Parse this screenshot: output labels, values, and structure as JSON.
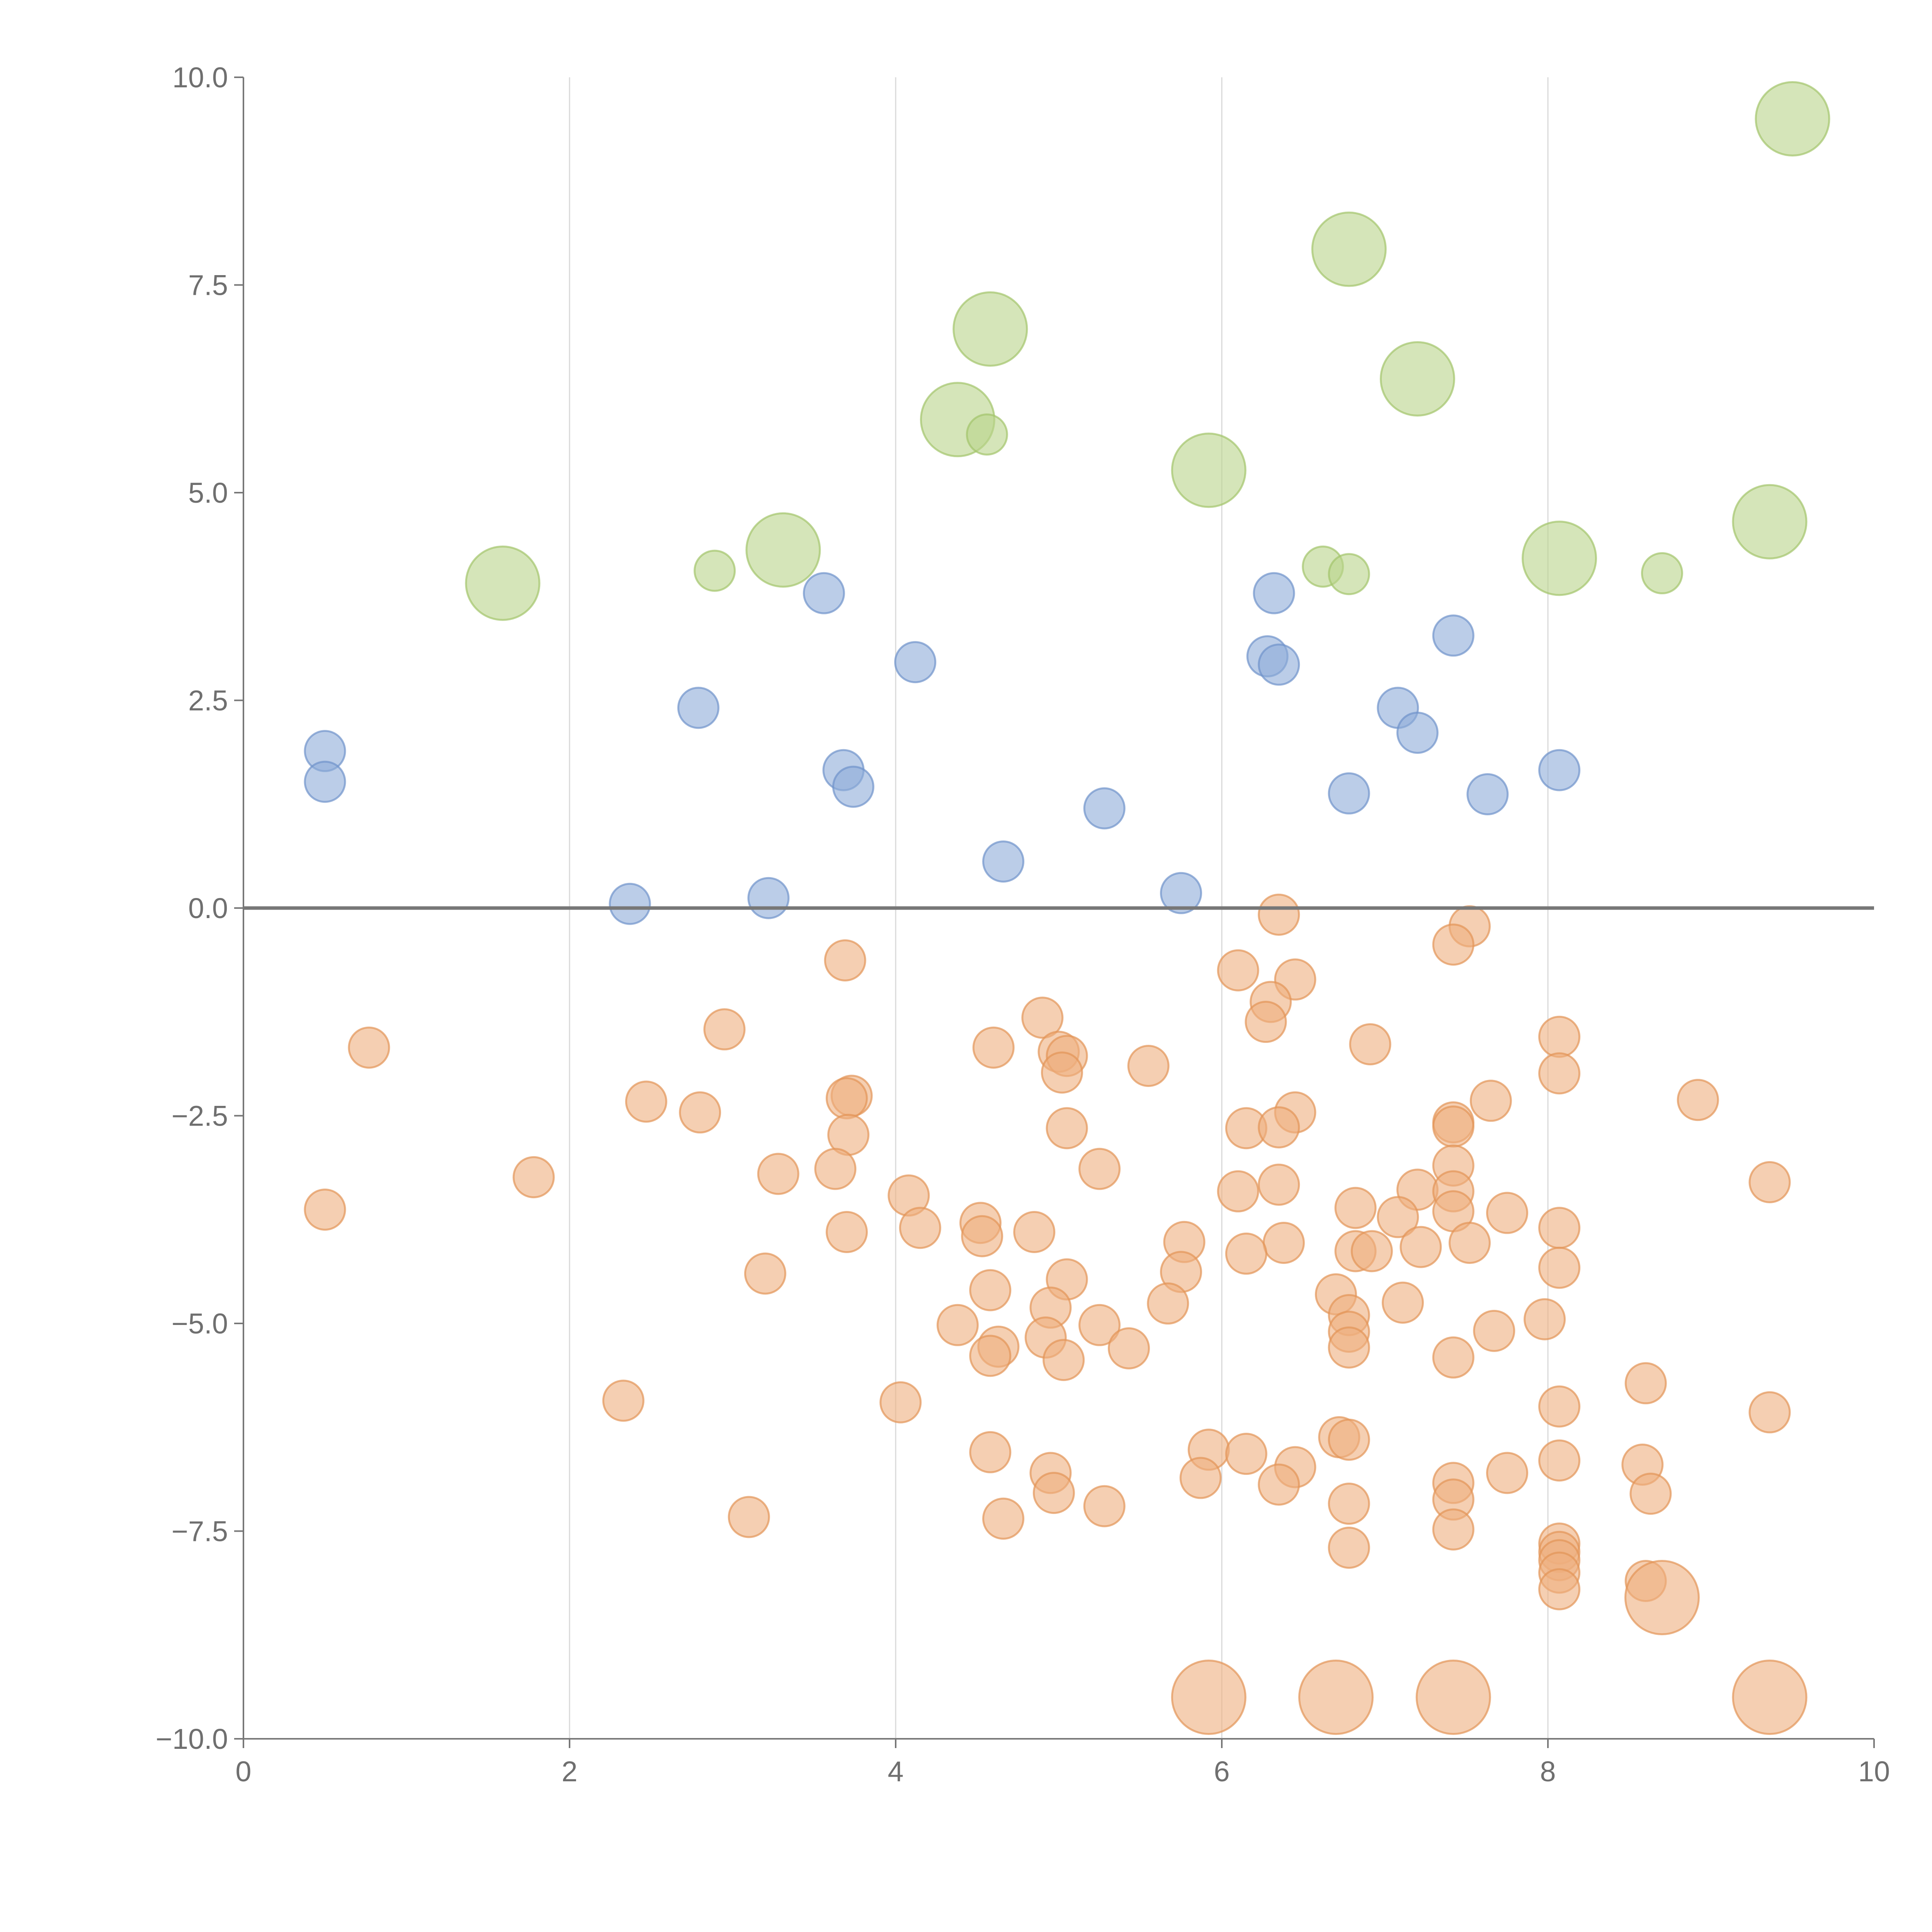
{
  "chart_data": {
    "type": "scatter",
    "title": "",
    "xlabel": "",
    "ylabel": "",
    "xlim": [
      0,
      10
    ],
    "ylim": [
      -10,
      10
    ],
    "grid": {
      "x": true,
      "y": false
    },
    "x_ticks": [
      0,
      2,
      4,
      6,
      8,
      10
    ],
    "x_tick_labels": [
      "0",
      "2",
      "4",
      "6",
      "8",
      "10"
    ],
    "y_ticks": [
      10,
      7.5,
      5,
      2.5,
      0,
      -2.5,
      -5,
      -7.5,
      -10
    ],
    "y_tick_labels": [
      "10.0",
      "7.5",
      "5.0",
      "2.5",
      "0.0",
      "−2.5",
      "−5.0",
      "−7.5",
      "−10.0"
    ],
    "reference_line_y": 0,
    "colors": {
      "green_fill": "#b9d48b",
      "green_stroke": "#a3c46b",
      "blue_fill": "#8eabd8",
      "blue_stroke": "#6f93cb",
      "orange_fill": "#eeaf7e",
      "orange_stroke": "#e29457",
      "axis": "#777777",
      "grid": "#d9d9d9"
    },
    "series": [
      {
        "name": "green",
        "color": "green",
        "points": [
          {
            "x": 9.5,
            "y": 9.5,
            "s": 2
          },
          {
            "x": 6.78,
            "y": 7.93,
            "s": 2
          },
          {
            "x": 4.58,
            "y": 6.97,
            "s": 2
          },
          {
            "x": 7.2,
            "y": 6.37,
            "s": 2
          },
          {
            "x": 4.38,
            "y": 5.88,
            "s": 2
          },
          {
            "x": 4.56,
            "y": 5.7,
            "s": 1
          },
          {
            "x": 5.92,
            "y": 5.27,
            "s": 2
          },
          {
            "x": 9.36,
            "y": 4.65,
            "s": 2
          },
          {
            "x": 3.31,
            "y": 4.31,
            "s": 2
          },
          {
            "x": 8.07,
            "y": 4.21,
            "s": 2
          },
          {
            "x": 6.62,
            "y": 4.11,
            "s": 1
          },
          {
            "x": 2.89,
            "y": 4.06,
            "s": 1
          },
          {
            "x": 6.78,
            "y": 4.02,
            "s": 1
          },
          {
            "x": 8.7,
            "y": 4.03,
            "s": 1
          },
          {
            "x": 1.59,
            "y": 3.91,
            "s": 2
          }
        ]
      },
      {
        "name": "blue",
        "color": "blue",
        "points": [
          {
            "x": 6.32,
            "y": 3.79,
            "s": 1
          },
          {
            "x": 3.56,
            "y": 3.79,
            "s": 1
          },
          {
            "x": 7.42,
            "y": 3.28,
            "s": 1
          },
          {
            "x": 6.28,
            "y": 3.03,
            "s": 1
          },
          {
            "x": 6.35,
            "y": 2.93,
            "s": 1
          },
          {
            "x": 4.12,
            "y": 2.96,
            "s": 1
          },
          {
            "x": 2.79,
            "y": 2.41,
            "s": 1
          },
          {
            "x": 7.08,
            "y": 2.41,
            "s": 1
          },
          {
            "x": 7.2,
            "y": 2.11,
            "s": 1
          },
          {
            "x": 0.5,
            "y": 1.89,
            "s": 1
          },
          {
            "x": 8.07,
            "y": 1.66,
            "s": 1
          },
          {
            "x": 3.68,
            "y": 1.66,
            "s": 1
          },
          {
            "x": 0.5,
            "y": 1.52,
            "s": 1
          },
          {
            "x": 3.74,
            "y": 1.46,
            "s": 1
          },
          {
            "x": 6.78,
            "y": 1.38,
            "s": 1
          },
          {
            "x": 7.63,
            "y": 1.37,
            "s": 1
          },
          {
            "x": 5.28,
            "y": 1.2,
            "s": 1
          },
          {
            "x": 4.66,
            "y": 0.56,
            "s": 1
          },
          {
            "x": 5.75,
            "y": 0.18,
            "s": 1
          },
          {
            "x": 3.22,
            "y": 0.12,
            "s": 1
          },
          {
            "x": 2.37,
            "y": 0.05,
            "s": 1
          }
        ]
      },
      {
        "name": "orange",
        "color": "orange",
        "points": [
          {
            "x": 6.35,
            "y": -0.08,
            "s": 1
          },
          {
            "x": 7.52,
            "y": -0.22,
            "s": 1
          },
          {
            "x": 7.42,
            "y": -0.44,
            "s": 1
          },
          {
            "x": 3.69,
            "y": -0.63,
            "s": 1
          },
          {
            "x": 6.1,
            "y": -0.75,
            "s": 1
          },
          {
            "x": 6.45,
            "y": -0.86,
            "s": 1
          },
          {
            "x": 6.3,
            "y": -1.13,
            "s": 1
          },
          {
            "x": 4.9,
            "y": -1.32,
            "s": 1
          },
          {
            "x": 6.27,
            "y": -1.37,
            "s": 1
          },
          {
            "x": 2.95,
            "y": -1.46,
            "s": 1
          },
          {
            "x": 8.07,
            "y": -1.55,
            "s": 1
          },
          {
            "x": 0.77,
            "y": -1.68,
            "s": 1
          },
          {
            "x": 4.6,
            "y": -1.68,
            "s": 1
          },
          {
            "x": 6.91,
            "y": -1.64,
            "s": 1
          },
          {
            "x": 5.0,
            "y": -1.73,
            "s": 1
          },
          {
            "x": 5.05,
            "y": -1.78,
            "s": 1
          },
          {
            "x": 5.55,
            "y": -1.9,
            "s": 1
          },
          {
            "x": 5.02,
            "y": -1.98,
            "s": 1
          },
          {
            "x": 8.07,
            "y": -1.99,
            "s": 1
          },
          {
            "x": 3.73,
            "y": -2.26,
            "s": 1
          },
          {
            "x": 3.7,
            "y": -2.29,
            "s": 1
          },
          {
            "x": 2.47,
            "y": -2.33,
            "s": 1
          },
          {
            "x": 7.65,
            "y": -2.32,
            "s": 1
          },
          {
            "x": 8.92,
            "y": -2.31,
            "s": 1
          },
          {
            "x": 2.8,
            "y": -2.46,
            "s": 1
          },
          {
            "x": 6.45,
            "y": -2.46,
            "s": 1
          },
          {
            "x": 7.42,
            "y": -2.58,
            "s": 1
          },
          {
            "x": 7.42,
            "y": -2.63,
            "s": 1
          },
          {
            "x": 6.15,
            "y": -2.65,
            "s": 1
          },
          {
            "x": 6.35,
            "y": -2.64,
            "s": 1
          },
          {
            "x": 5.05,
            "y": -2.65,
            "s": 1
          },
          {
            "x": 3.71,
            "y": -2.73,
            "s": 1
          },
          {
            "x": 3.63,
            "y": -3.14,
            "s": 1
          },
          {
            "x": 5.25,
            "y": -3.14,
            "s": 1
          },
          {
            "x": 7.42,
            "y": -3.1,
            "s": 1
          },
          {
            "x": 1.78,
            "y": -3.24,
            "s": 1
          },
          {
            "x": 3.28,
            "y": -3.2,
            "s": 1
          },
          {
            "x": 6.35,
            "y": -3.33,
            "s": 1
          },
          {
            "x": 9.36,
            "y": -3.3,
            "s": 1
          },
          {
            "x": 7.2,
            "y": -3.39,
            "s": 1
          },
          {
            "x": 7.42,
            "y": -3.41,
            "s": 1
          },
          {
            "x": 6.1,
            "y": -3.41,
            "s": 1
          },
          {
            "x": 4.08,
            "y": -3.46,
            "s": 1
          },
          {
            "x": 0.5,
            "y": -3.63,
            "s": 1
          },
          {
            "x": 6.82,
            "y": -3.61,
            "s": 1
          },
          {
            "x": 7.42,
            "y": -3.65,
            "s": 1
          },
          {
            "x": 7.75,
            "y": -3.67,
            "s": 1
          },
          {
            "x": 7.08,
            "y": -3.72,
            "s": 1
          },
          {
            "x": 4.52,
            "y": -3.79,
            "s": 1
          },
          {
            "x": 4.15,
            "y": -3.85,
            "s": 1
          },
          {
            "x": 3.7,
            "y": -3.9,
            "s": 1
          },
          {
            "x": 4.85,
            "y": -3.9,
            "s": 1
          },
          {
            "x": 8.07,
            "y": -3.85,
            "s": 1
          },
          {
            "x": 4.53,
            "y": -3.95,
            "s": 1
          },
          {
            "x": 5.77,
            "y": -4.02,
            "s": 1
          },
          {
            "x": 6.38,
            "y": -4.03,
            "s": 1
          },
          {
            "x": 7.52,
            "y": -4.03,
            "s": 1
          },
          {
            "x": 7.22,
            "y": -4.08,
            "s": 1
          },
          {
            "x": 6.82,
            "y": -4.13,
            "s": 1
          },
          {
            "x": 6.92,
            "y": -4.13,
            "s": 1
          },
          {
            "x": 6.15,
            "y": -4.16,
            "s": 1
          },
          {
            "x": 8.07,
            "y": -4.33,
            "s": 1
          },
          {
            "x": 3.2,
            "y": -4.4,
            "s": 1
          },
          {
            "x": 5.75,
            "y": -4.38,
            "s": 1
          },
          {
            "x": 5.05,
            "y": -4.47,
            "s": 1
          },
          {
            "x": 4.58,
            "y": -4.6,
            "s": 1
          },
          {
            "x": 6.7,
            "y": -4.65,
            "s": 1
          },
          {
            "x": 5.67,
            "y": -4.76,
            "s": 1
          },
          {
            "x": 7.11,
            "y": -4.75,
            "s": 1
          },
          {
            "x": 4.95,
            "y": -4.81,
            "s": 1
          },
          {
            "x": 6.78,
            "y": -4.9,
            "s": 1
          },
          {
            "x": 7.98,
            "y": -4.95,
            "s": 1
          },
          {
            "x": 4.38,
            "y": -5.02,
            "s": 1
          },
          {
            "x": 5.25,
            "y": -5.02,
            "s": 1
          },
          {
            "x": 6.78,
            "y": -5.1,
            "s": 1
          },
          {
            "x": 7.67,
            "y": -5.09,
            "s": 1
          },
          {
            "x": 4.92,
            "y": -5.17,
            "s": 1
          },
          {
            "x": 4.63,
            "y": -5.28,
            "s": 1
          },
          {
            "x": 6.78,
            "y": -5.29,
            "s": 1
          },
          {
            "x": 5.43,
            "y": -5.3,
            "s": 1
          },
          {
            "x": 4.58,
            "y": -5.39,
            "s": 1
          },
          {
            "x": 5.03,
            "y": -5.44,
            "s": 1
          },
          {
            "x": 7.42,
            "y": -5.41,
            "s": 1
          },
          {
            "x": 8.6,
            "y": -5.72,
            "s": 1
          },
          {
            "x": 2.33,
            "y": -5.93,
            "s": 1
          },
          {
            "x": 4.03,
            "y": -5.95,
            "s": 1
          },
          {
            "x": 8.07,
            "y": -6.0,
            "s": 1
          },
          {
            "x": 9.36,
            "y": -6.07,
            "s": 1
          },
          {
            "x": 6.72,
            "y": -6.37,
            "s": 1
          },
          {
            "x": 6.78,
            "y": -6.4,
            "s": 1
          },
          {
            "x": 5.92,
            "y": -6.52,
            "s": 1
          },
          {
            "x": 4.58,
            "y": -6.55,
            "s": 1
          },
          {
            "x": 6.15,
            "y": -6.57,
            "s": 1
          },
          {
            "x": 8.07,
            "y": -6.65,
            "s": 1
          },
          {
            "x": 8.58,
            "y": -6.7,
            "s": 1
          },
          {
            "x": 6.45,
            "y": -6.73,
            "s": 1
          },
          {
            "x": 4.95,
            "y": -6.8,
            "s": 1
          },
          {
            "x": 7.75,
            "y": -6.8,
            "s": 1
          },
          {
            "x": 5.87,
            "y": -6.86,
            "s": 1
          },
          {
            "x": 7.42,
            "y": -6.92,
            "s": 1
          },
          {
            "x": 6.35,
            "y": -6.94,
            "s": 1
          },
          {
            "x": 4.97,
            "y": -7.04,
            "s": 1
          },
          {
            "x": 8.63,
            "y": -7.05,
            "s": 1
          },
          {
            "x": 7.42,
            "y": -7.12,
            "s": 1
          },
          {
            "x": 6.78,
            "y": -7.17,
            "s": 1
          },
          {
            "x": 5.28,
            "y": -7.2,
            "s": 1
          },
          {
            "x": 3.1,
            "y": -7.33,
            "s": 1
          },
          {
            "x": 4.66,
            "y": -7.35,
            "s": 1
          },
          {
            "x": 7.42,
            "y": -7.48,
            "s": 1
          },
          {
            "x": 8.07,
            "y": -7.65,
            "s": 1
          },
          {
            "x": 6.78,
            "y": -7.7,
            "s": 1
          },
          {
            "x": 8.07,
            "y": -7.75,
            "s": 1
          },
          {
            "x": 8.07,
            "y": -7.85,
            "s": 1
          },
          {
            "x": 8.07,
            "y": -8.0,
            "s": 1
          },
          {
            "x": 8.6,
            "y": -8.1,
            "s": 1
          },
          {
            "x": 8.07,
            "y": -8.2,
            "s": 1
          },
          {
            "x": 8.7,
            "y": -8.3,
            "s": 2
          },
          {
            "x": 5.92,
            "y": -9.5,
            "s": 2
          },
          {
            "x": 6.7,
            "y": -9.5,
            "s": 2
          },
          {
            "x": 7.42,
            "y": -9.5,
            "s": 2
          },
          {
            "x": 9.36,
            "y": -9.5,
            "s": 2
          }
        ]
      }
    ]
  }
}
